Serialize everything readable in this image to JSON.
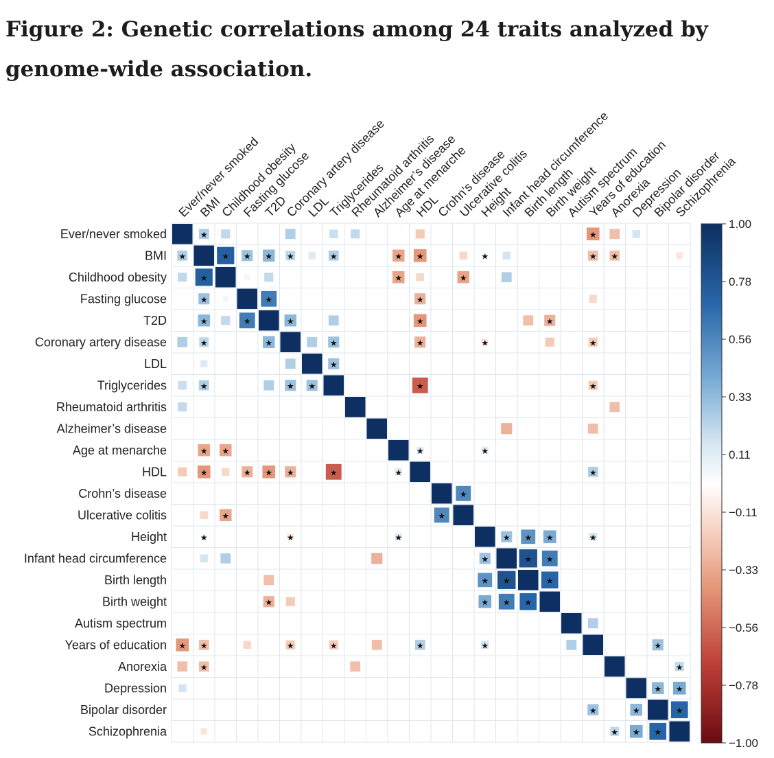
{
  "title": "Figure 2: Genetic correlations among 24 traits analyzed by genome-wide association.",
  "chart_data": {
    "type": "heatmap",
    "title": "Figure 2: Genetic correlations among 24 traits analyzed by genome-wide association.",
    "traits": [
      "Ever/never smoked",
      "BMI",
      "Childhood obesity",
      "Fasting glucose",
      "T2D",
      "Coronary artery disease",
      "LDL",
      "Triglycerides",
      "Rheumatoid arthritis",
      "Alzheimer’s disease",
      "Age at menarche",
      "HDL",
      "Crohn’s disease",
      "Ulcerative colitis",
      "Height",
      "Infant head circumference",
      "Birth length",
      "Birth weight",
      "Autism spectrum",
      "Years of education",
      "Anorexia",
      "Depression",
      "Bipolar disorder",
      "Schizophrenia"
    ],
    "column_labels": [
      "Ever/never smoked",
      "BMI",
      "Childhood obesity",
      "Fasting glucose",
      "T2D",
      "Coronary artery disease",
      "LDL",
      "Triglycerides",
      "Rheumatoid arthritis",
      "Alzheimer’s disease",
      "Age at menarche",
      "HDL",
      "Crohn’s disease",
      "Ulcerative colitis",
      "Height",
      "Infant head circumference",
      "Birth length",
      "Birth weight",
      "Autism spectrum",
      "Years of education",
      "Anorexia",
      "Depression",
      "Bipolar disorder",
      "Schizophrenia"
    ],
    "value_range": [
      -1.0,
      1.0
    ],
    "colorbar_ticks": [
      "1.00",
      "0.78",
      "0.56",
      "0.33",
      "0.11",
      "−0.11",
      "−0.33",
      "−0.56",
      "−0.78",
      "−1.00"
    ],
    "colors": {
      "positive": "#0d2f61",
      "negative": "#6b0b14",
      "neutral": "#ffffff",
      "grid": "#dfe6ee"
    },
    "correlations": [
      {
        "a": "Ever/never smoked",
        "b": "BMI",
        "r": 0.25,
        "significant": true
      },
      {
        "a": "Ever/never smoked",
        "b": "Childhood obesity",
        "r": 0.2,
        "significant": false
      },
      {
        "a": "Ever/never smoked",
        "b": "Coronary artery disease",
        "r": 0.25,
        "significant": false
      },
      {
        "a": "Ever/never smoked",
        "b": "Triglycerides",
        "r": 0.18,
        "significant": false
      },
      {
        "a": "Ever/never smoked",
        "b": "Rheumatoid arthritis",
        "r": 0.2,
        "significant": false
      },
      {
        "a": "Ever/never smoked",
        "b": "HDL",
        "r": -0.2,
        "significant": false
      },
      {
        "a": "Ever/never smoked",
        "b": "Years of education",
        "r": -0.4,
        "significant": true
      },
      {
        "a": "Ever/never smoked",
        "b": "Anorexia",
        "r": -0.25,
        "significant": false
      },
      {
        "a": "Ever/never smoked",
        "b": "Depression",
        "r": 0.15,
        "significant": false
      },
      {
        "a": "BMI",
        "b": "Childhood obesity",
        "r": 0.73,
        "significant": true
      },
      {
        "a": "BMI",
        "b": "Fasting glucose",
        "r": 0.3,
        "significant": true
      },
      {
        "a": "BMI",
        "b": "T2D",
        "r": 0.35,
        "significant": true
      },
      {
        "a": "BMI",
        "b": "Coronary artery disease",
        "r": 0.22,
        "significant": true
      },
      {
        "a": "BMI",
        "b": "LDL",
        "r": 0.12,
        "significant": false
      },
      {
        "a": "BMI",
        "b": "Triglycerides",
        "r": 0.25,
        "significant": true
      },
      {
        "a": "BMI",
        "b": "Age at menarche",
        "r": -0.35,
        "significant": true
      },
      {
        "a": "BMI",
        "b": "HDL",
        "r": -0.4,
        "significant": true
      },
      {
        "a": "BMI",
        "b": "Ulcerative colitis",
        "r": -0.15,
        "significant": false
      },
      {
        "a": "BMI",
        "b": "Height",
        "r": 0.05,
        "significant": true
      },
      {
        "a": "BMI",
        "b": "Infant head circumference",
        "r": 0.15,
        "significant": false
      },
      {
        "a": "BMI",
        "b": "Years of education",
        "r": -0.25,
        "significant": true
      },
      {
        "a": "BMI",
        "b": "Anorexia",
        "r": -0.25,
        "significant": true
      },
      {
        "a": "BMI",
        "b": "Schizophrenia",
        "r": -0.1,
        "significant": false
      },
      {
        "a": "Childhood obesity",
        "b": "Fasting glucose",
        "r": 0.05,
        "significant": false
      },
      {
        "a": "Childhood obesity",
        "b": "T2D",
        "r": 0.2,
        "significant": false
      },
      {
        "a": "Childhood obesity",
        "b": "Age at menarche",
        "r": -0.35,
        "significant": true
      },
      {
        "a": "Childhood obesity",
        "b": "HDL",
        "r": -0.15,
        "significant": false
      },
      {
        "a": "Childhood obesity",
        "b": "Ulcerative colitis",
        "r": -0.35,
        "significant": true
      },
      {
        "a": "Childhood obesity",
        "b": "Infant head circumference",
        "r": 0.25,
        "significant": false
      },
      {
        "a": "Fasting glucose",
        "b": "T2D",
        "r": 0.6,
        "significant": true
      },
      {
        "a": "Fasting glucose",
        "b": "HDL",
        "r": -0.3,
        "significant": true
      },
      {
        "a": "Fasting glucose",
        "b": "Years of education",
        "r": -0.15,
        "significant": false
      },
      {
        "a": "T2D",
        "b": "Coronary artery disease",
        "r": 0.35,
        "significant": true
      },
      {
        "a": "T2D",
        "b": "Triglycerides",
        "r": 0.25,
        "significant": false
      },
      {
        "a": "T2D",
        "b": "HDL",
        "r": -0.4,
        "significant": true
      },
      {
        "a": "T2D",
        "b": "Birth length",
        "r": -0.25,
        "significant": false
      },
      {
        "a": "T2D",
        "b": "Birth weight",
        "r": -0.3,
        "significant": true
      },
      {
        "a": "Coronary artery disease",
        "b": "LDL",
        "r": 0.25,
        "significant": false
      },
      {
        "a": "Coronary artery disease",
        "b": "Triglycerides",
        "r": 0.3,
        "significant": true
      },
      {
        "a": "Coronary artery disease",
        "b": "HDL",
        "r": -0.3,
        "significant": true
      },
      {
        "a": "Coronary artery disease",
        "b": "Height",
        "r": -0.1,
        "significant": true
      },
      {
        "a": "Coronary artery disease",
        "b": "Birth weight",
        "r": -0.2,
        "significant": false
      },
      {
        "a": "Coronary artery disease",
        "b": "Years of education",
        "r": -0.2,
        "significant": true
      },
      {
        "a": "LDL",
        "b": "Triglycerides",
        "r": 0.3,
        "significant": true
      },
      {
        "a": "Triglycerides",
        "b": "HDL",
        "r": -0.6,
        "significant": true
      },
      {
        "a": "Triglycerides",
        "b": "Years of education",
        "r": -0.2,
        "significant": true
      },
      {
        "a": "Rheumatoid arthritis",
        "b": "Anorexia",
        "r": -0.25,
        "significant": false
      },
      {
        "a": "Alzheimer’s disease",
        "b": "Infant head circumference",
        "r": -0.3,
        "significant": false
      },
      {
        "a": "Alzheimer’s disease",
        "b": "Years of education",
        "r": -0.25,
        "significant": false
      },
      {
        "a": "Age at menarche",
        "b": "HDL",
        "r": 0.12,
        "significant": true
      },
      {
        "a": "Age at menarche",
        "b": "Height",
        "r": 0.12,
        "significant": true
      },
      {
        "a": "HDL",
        "b": "Years of education",
        "r": 0.25,
        "significant": true
      },
      {
        "a": "Crohn’s disease",
        "b": "Ulcerative colitis",
        "r": 0.55,
        "significant": true
      },
      {
        "a": "Height",
        "b": "Infant head circumference",
        "r": 0.3,
        "significant": true
      },
      {
        "a": "Height",
        "b": "Birth length",
        "r": 0.5,
        "significant": true
      },
      {
        "a": "Height",
        "b": "Birth weight",
        "r": 0.4,
        "significant": true
      },
      {
        "a": "Height",
        "b": "Years of education",
        "r": 0.15,
        "significant": true
      },
      {
        "a": "Infant head circumference",
        "b": "Birth length",
        "r": 0.8,
        "significant": true
      },
      {
        "a": "Infant head circumference",
        "b": "Birth weight",
        "r": 0.6,
        "significant": true
      },
      {
        "a": "Birth length",
        "b": "Birth weight",
        "r": 0.7,
        "significant": true
      },
      {
        "a": "Autism spectrum",
        "b": "Years of education",
        "r": 0.25,
        "significant": false
      },
      {
        "a": "Years of education",
        "b": "Bipolar disorder",
        "r": 0.3,
        "significant": true
      },
      {
        "a": "Anorexia",
        "b": "Schizophrenia",
        "r": 0.2,
        "significant": true
      },
      {
        "a": "Depression",
        "b": "Bipolar disorder",
        "r": 0.35,
        "significant": true
      },
      {
        "a": "Depression",
        "b": "Schizophrenia",
        "r": 0.4,
        "significant": true
      },
      {
        "a": "Bipolar disorder",
        "b": "Schizophrenia",
        "r": 0.7,
        "significant": true
      }
    ]
  }
}
